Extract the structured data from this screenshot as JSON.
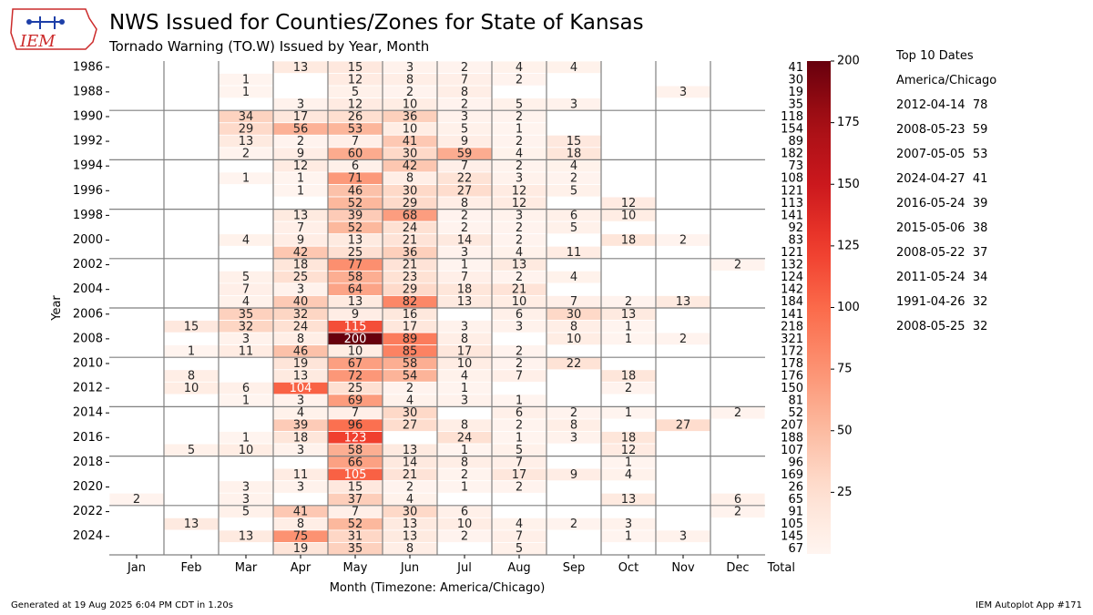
{
  "header": {
    "title": "NWS Issued for Counties/Zones for State of Kansas",
    "subtitle": "Tornado Warning (TO.W) Issued by Year, Month",
    "logo_text": "IEM"
  },
  "footer": {
    "generated": "Generated at 19 Aug 2025 6:04 PM CDT in 1.20s",
    "app": "IEM Autoplot App #171"
  },
  "top10": {
    "title": "Top 10 Dates",
    "timezone": "America/Chicago",
    "dates": [
      "2012-04-14  78",
      "2008-05-23  59",
      "2007-05-05  53",
      "2024-04-27  41",
      "2016-05-24  39",
      "2015-05-06  38",
      "2008-05-22  37",
      "2011-05-24  34",
      "1991-04-26  32",
      "2008-05-25  32"
    ]
  },
  "colors": {
    "cmap_low": "#fff5f0",
    "cmap_high": "#67000d",
    "grid": "#808080"
  },
  "chart_data": {
    "type": "heatmap",
    "xlabel": "Month (Timezone: America/Chicago)",
    "ylabel": "Year",
    "months": [
      "Jan",
      "Feb",
      "Mar",
      "Apr",
      "May",
      "Jun",
      "Jul",
      "Aug",
      "Sep",
      "Oct",
      "Nov",
      "Dec"
    ],
    "total_label": "Total",
    "years": [
      1986,
      1987,
      1988,
      1989,
      1990,
      1991,
      1992,
      1993,
      1994,
      1995,
      1996,
      1997,
      1998,
      1999,
      2000,
      2001,
      2002,
      2003,
      2004,
      2005,
      2006,
      2007,
      2008,
      2009,
      2010,
      2011,
      2012,
      2013,
      2014,
      2015,
      2016,
      2017,
      2018,
      2019,
      2020,
      2021,
      2022,
      2023,
      2024,
      2025
    ],
    "ytick_labels": [
      "1986",
      "1988",
      "1990",
      "1992",
      "1994",
      "1996",
      "1998",
      "2000",
      "2002",
      "2004",
      "2006",
      "2008",
      "2010",
      "2012",
      "2014",
      "2016",
      "2018",
      "2020",
      "2022",
      "2024"
    ],
    "values": [
      [
        null,
        null,
        null,
        13,
        15,
        3,
        2,
        4,
        4,
        null,
        null,
        null
      ],
      [
        null,
        null,
        1,
        null,
        12,
        8,
        7,
        2,
        null,
        null,
        null,
        null
      ],
      [
        null,
        null,
        1,
        null,
        5,
        2,
        8,
        null,
        null,
        null,
        3,
        null
      ],
      [
        null,
        null,
        null,
        3,
        12,
        10,
        2,
        5,
        3,
        null,
        null,
        null
      ],
      [
        null,
        null,
        34,
        17,
        26,
        36,
        3,
        2,
        null,
        null,
        null,
        null
      ],
      [
        null,
        null,
        29,
        56,
        53,
        10,
        5,
        1,
        null,
        null,
        null,
        null
      ],
      [
        null,
        null,
        13,
        2,
        7,
        41,
        9,
        2,
        15,
        null,
        null,
        null
      ],
      [
        null,
        null,
        2,
        9,
        60,
        30,
        59,
        4,
        18,
        null,
        null,
        null
      ],
      [
        null,
        null,
        null,
        12,
        6,
        42,
        7,
        2,
        4,
        null,
        null,
        null
      ],
      [
        null,
        null,
        1,
        1,
        71,
        8,
        22,
        3,
        2,
        null,
        null,
        null
      ],
      [
        null,
        null,
        null,
        1,
        46,
        30,
        27,
        12,
        5,
        null,
        null,
        null
      ],
      [
        null,
        null,
        null,
        null,
        52,
        29,
        8,
        12,
        null,
        12,
        null,
        null
      ],
      [
        null,
        null,
        null,
        13,
        39,
        68,
        2,
        3,
        6,
        10,
        null,
        null
      ],
      [
        null,
        null,
        null,
        7,
        52,
        24,
        2,
        2,
        5,
        null,
        null,
        null
      ],
      [
        null,
        null,
        4,
        9,
        13,
        21,
        14,
        2,
        null,
        18,
        2,
        null
      ],
      [
        null,
        null,
        null,
        42,
        25,
        36,
        3,
        4,
        11,
        null,
        null,
        null
      ],
      [
        null,
        null,
        null,
        18,
        77,
        21,
        1,
        13,
        null,
        null,
        null,
        2
      ],
      [
        null,
        null,
        5,
        25,
        58,
        23,
        7,
        2,
        4,
        null,
        null,
        null
      ],
      [
        null,
        null,
        7,
        3,
        64,
        29,
        18,
        21,
        null,
        null,
        null,
        null
      ],
      [
        null,
        null,
        4,
        40,
        13,
        82,
        13,
        10,
        7,
        2,
        13,
        null
      ],
      [
        null,
        null,
        35,
        32,
        9,
        16,
        null,
        6,
        30,
        13,
        null,
        null
      ],
      [
        null,
        15,
        32,
        24,
        115,
        17,
        3,
        3,
        8,
        1,
        null,
        null
      ],
      [
        null,
        null,
        3,
        8,
        200,
        89,
        8,
        null,
        10,
        1,
        2,
        null
      ],
      [
        null,
        1,
        11,
        46,
        10,
        85,
        17,
        2,
        null,
        null,
        null,
        null
      ],
      [
        null,
        null,
        null,
        19,
        67,
        58,
        10,
        2,
        22,
        null,
        null,
        null
      ],
      [
        null,
        8,
        null,
        13,
        72,
        54,
        4,
        7,
        null,
        18,
        null,
        null
      ],
      [
        null,
        10,
        6,
        104,
        25,
        2,
        1,
        null,
        null,
        2,
        null,
        null
      ],
      [
        null,
        null,
        1,
        3,
        69,
        4,
        3,
        1,
        null,
        null,
        null,
        null
      ],
      [
        null,
        null,
        null,
        4,
        7,
        30,
        null,
        6,
        2,
        1,
        null,
        2
      ],
      [
        null,
        null,
        null,
        39,
        96,
        27,
        8,
        2,
        8,
        null,
        27,
        null
      ],
      [
        null,
        null,
        1,
        18,
        123,
        null,
        24,
        1,
        3,
        18,
        null,
        null
      ],
      [
        null,
        5,
        10,
        3,
        58,
        13,
        1,
        5,
        null,
        12,
        null,
        null
      ],
      [
        null,
        null,
        null,
        null,
        66,
        14,
        8,
        7,
        null,
        1,
        null,
        null
      ],
      [
        null,
        null,
        null,
        11,
        105,
        21,
        2,
        17,
        9,
        4,
        null,
        null
      ],
      [
        null,
        null,
        3,
        3,
        15,
        2,
        1,
        2,
        null,
        null,
        null,
        null
      ],
      [
        2,
        null,
        3,
        null,
        37,
        4,
        null,
        null,
        null,
        13,
        null,
        6
      ],
      [
        null,
        null,
        5,
        41,
        7,
        30,
        6,
        null,
        null,
        null,
        null,
        2
      ],
      [
        null,
        13,
        null,
        8,
        52,
        13,
        10,
        4,
        2,
        3,
        null,
        null
      ],
      [
        null,
        null,
        13,
        75,
        31,
        13,
        2,
        7,
        null,
        1,
        3,
        null
      ],
      [
        null,
        null,
        null,
        19,
        35,
        8,
        null,
        5,
        null,
        null,
        null,
        null
      ]
    ],
    "totals": [
      41,
      30,
      19,
      35,
      118,
      154,
      89,
      182,
      73,
      108,
      121,
      113,
      141,
      92,
      83,
      121,
      132,
      124,
      142,
      184,
      141,
      218,
      321,
      172,
      178,
      176,
      150,
      81,
      52,
      207,
      188,
      107,
      96,
      169,
      26,
      65,
      91,
      105,
      145,
      67
    ],
    "colorbar": {
      "min": 0,
      "max": 200,
      "ticks": [
        25,
        50,
        75,
        100,
        125,
        150,
        175,
        200
      ]
    }
  }
}
